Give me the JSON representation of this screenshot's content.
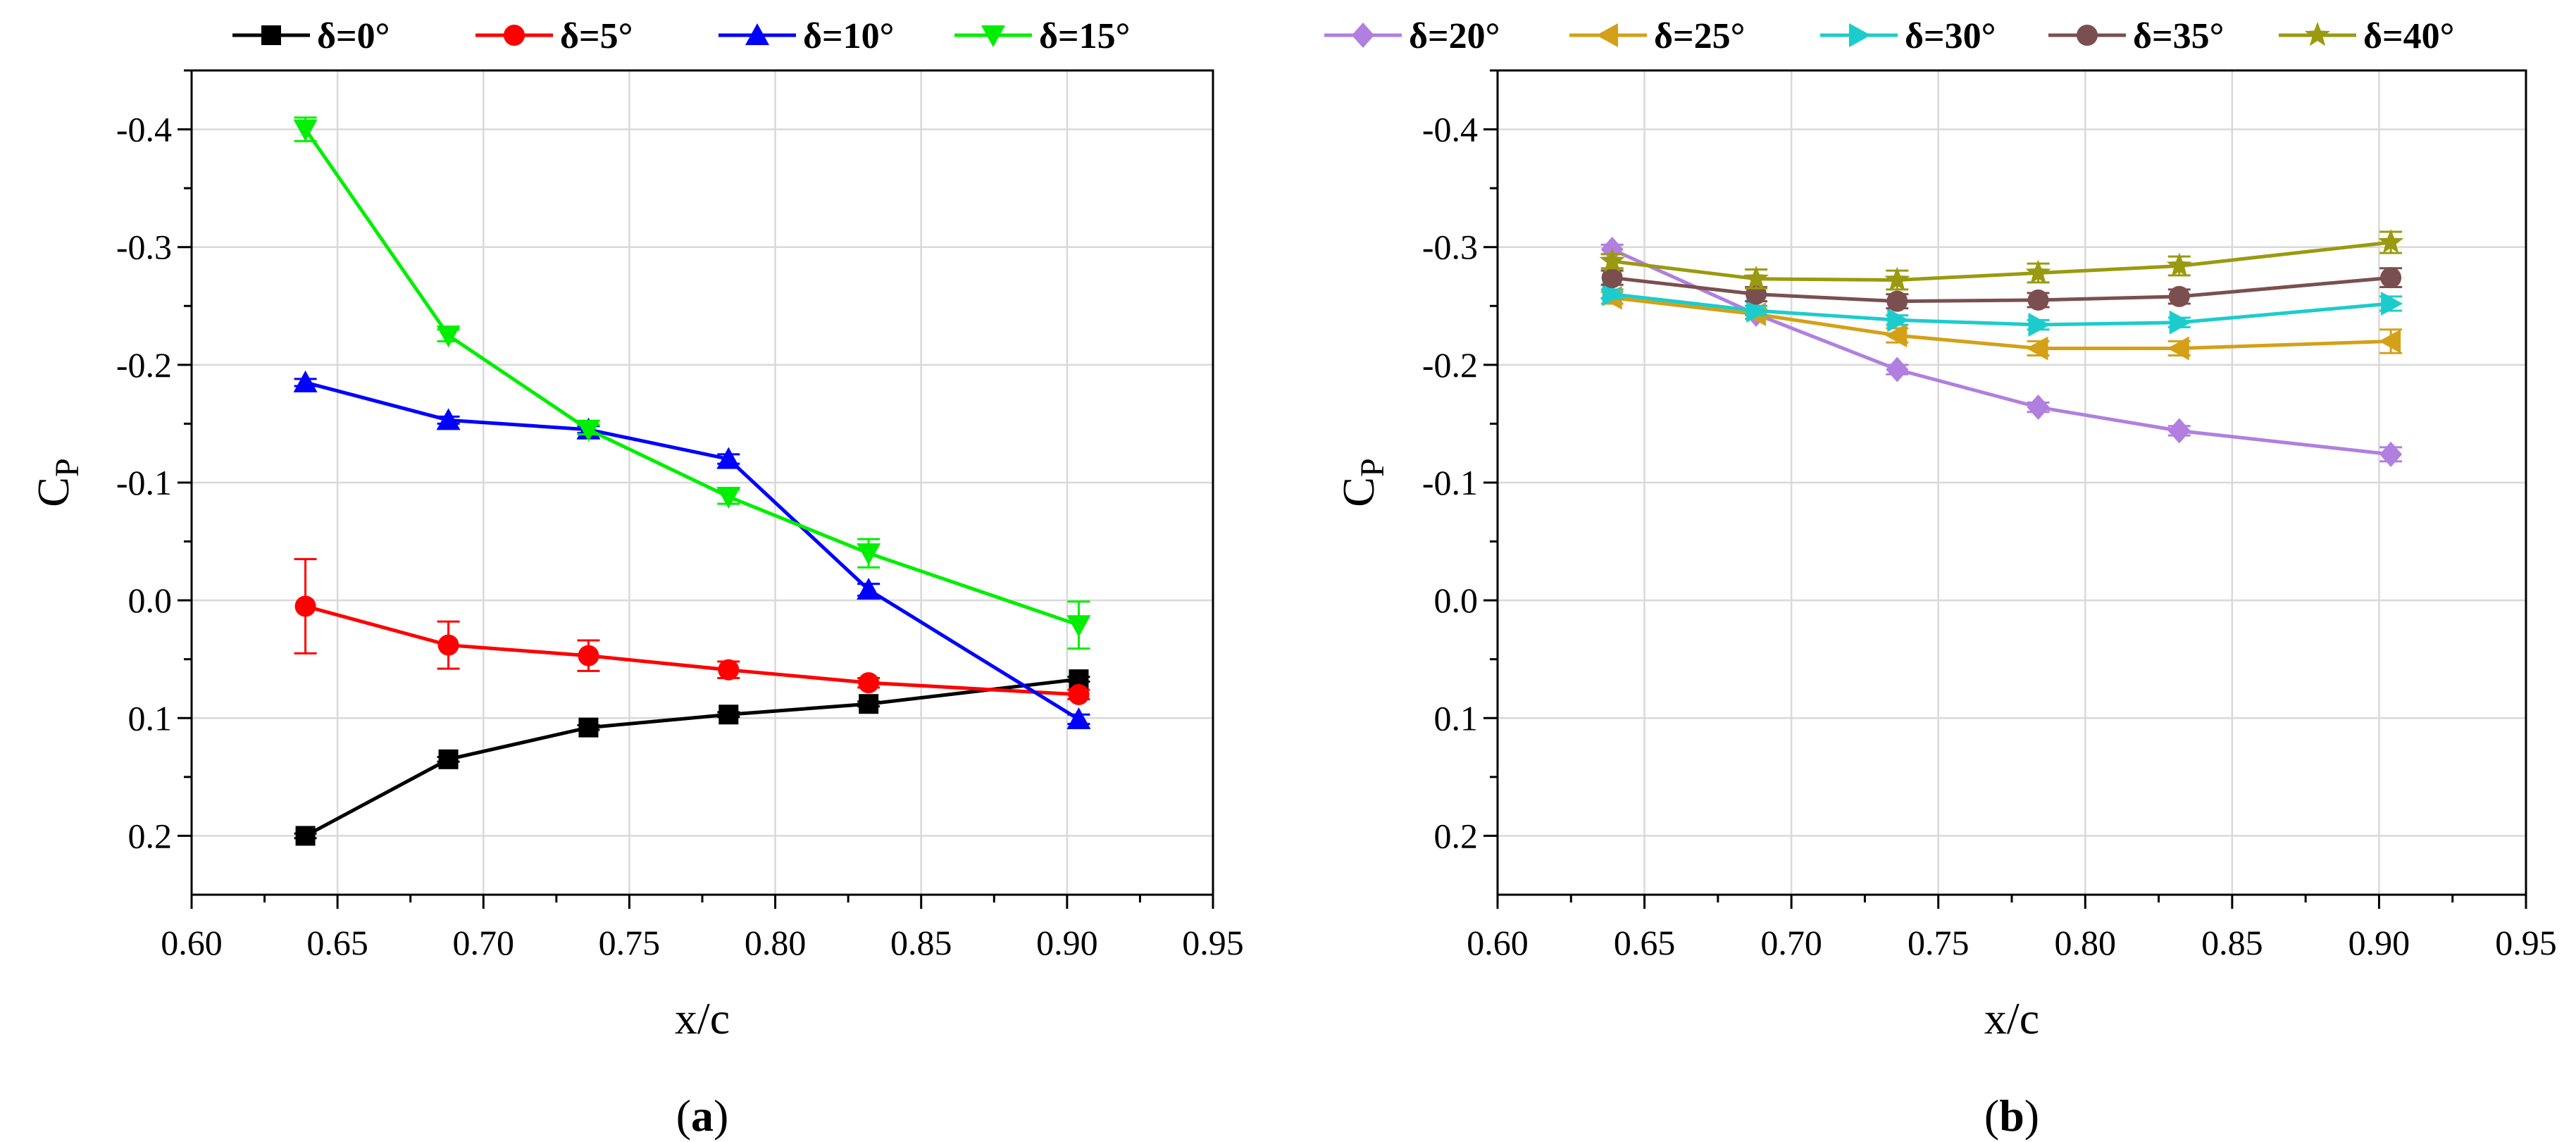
{
  "chart_data": [
    {
      "type": "line",
      "panel_label": "a",
      "xlabel": "x/c",
      "ylabel": "C",
      "ylabel_sub": "P",
      "xlim": [
        0.6,
        0.95
      ],
      "ylim": [
        0.25,
        -0.45
      ],
      "y_inverted": true,
      "grid": true,
      "xticks": [
        "0.60",
        "0.65",
        "0.70",
        "0.75",
        "0.80",
        "0.85",
        "0.90",
        "0.95"
      ],
      "yticks": [
        "-0.4",
        "-0.3",
        "-0.2",
        "-0.1",
        "0.0",
        "0.1",
        "0.2"
      ],
      "legend_position": "top",
      "x": [
        0.639,
        0.688,
        0.736,
        0.784,
        0.832,
        0.904
      ],
      "series": [
        {
          "name": "δ=0°",
          "color": "#000000",
          "marker": "square",
          "values": [
            0.2,
            0.135,
            0.108,
            0.097,
            0.088,
            0.067
          ],
          "errors": [
            0.002,
            0.002,
            0.002,
            0.002,
            0.002,
            0.002
          ]
        },
        {
          "name": "δ=5°",
          "color": "#ff0000",
          "marker": "circle",
          "values": [
            0.005,
            0.038,
            0.047,
            0.059,
            0.07,
            0.08
          ],
          "errors": [
            0.04,
            0.02,
            0.013,
            0.007,
            0.004,
            0.004
          ]
        },
        {
          "name": "δ=10°",
          "color": "#0000ff",
          "marker": "triangle-up",
          "values": [
            -0.185,
            -0.153,
            -0.145,
            -0.12,
            -0.009,
            0.101
          ],
          "errors": [
            0.003,
            0.003,
            0.003,
            0.004,
            0.005,
            0.004
          ]
        },
        {
          "name": "δ=15°",
          "color": "#00ee00",
          "marker": "triangle-down",
          "values": [
            -0.4,
            -0.225,
            -0.145,
            -0.088,
            -0.04,
            0.021
          ],
          "errors": [
            0.01,
            0.005,
            0.004,
            0.006,
            0.012,
            0.02
          ]
        }
      ]
    },
    {
      "type": "line",
      "panel_label": "b",
      "xlabel": "x/c",
      "ylabel": "C",
      "ylabel_sub": "P",
      "xlim": [
        0.6,
        0.95
      ],
      "ylim": [
        0.25,
        -0.45
      ],
      "y_inverted": true,
      "grid": true,
      "xticks": [
        "0.60",
        "0.65",
        "0.70",
        "0.75",
        "0.80",
        "0.85",
        "0.90",
        "0.95"
      ],
      "yticks": [
        "-0.4",
        "-0.3",
        "-0.2",
        "-0.1",
        "0.0",
        "0.1",
        "0.2"
      ],
      "legend_position": "top",
      "x": [
        0.639,
        0.688,
        0.736,
        0.784,
        0.832,
        0.904
      ],
      "series": [
        {
          "name": "δ=20°",
          "color": "#b07fe0",
          "marker": "diamond",
          "values": [
            -0.298,
            -0.243,
            -0.196,
            -0.164,
            -0.144,
            -0.124
          ],
          "errors": [
            0.004,
            0.004,
            0.004,
            0.004,
            0.004,
            0.006
          ]
        },
        {
          "name": "δ=25°",
          "color": "#d4a017",
          "marker": "triangle-left",
          "values": [
            -0.257,
            -0.243,
            -0.225,
            -0.214,
            -0.214,
            -0.22
          ],
          "errors": [
            0.005,
            0.004,
            0.006,
            0.006,
            0.006,
            0.01
          ]
        },
        {
          "name": "δ=30°",
          "color": "#1ccccc",
          "marker": "triangle-right",
          "values": [
            -0.26,
            -0.246,
            -0.238,
            -0.234,
            -0.236,
            -0.252
          ],
          "errors": [
            0.004,
            0.004,
            0.004,
            0.004,
            0.004,
            0.006
          ]
        },
        {
          "name": "δ=35°",
          "color": "#7b4f4f",
          "marker": "circle",
          "values": [
            -0.274,
            -0.26,
            -0.254,
            -0.255,
            -0.258,
            -0.274
          ],
          "errors": [
            0.006,
            0.006,
            0.006,
            0.006,
            0.006,
            0.008
          ]
        },
        {
          "name": "δ=40°",
          "color": "#9a9a10",
          "marker": "star",
          "values": [
            -0.288,
            -0.273,
            -0.272,
            -0.278,
            -0.284,
            -0.304
          ],
          "errors": [
            0.006,
            0.008,
            0.008,
            0.008,
            0.008,
            0.009
          ]
        }
      ]
    }
  ]
}
